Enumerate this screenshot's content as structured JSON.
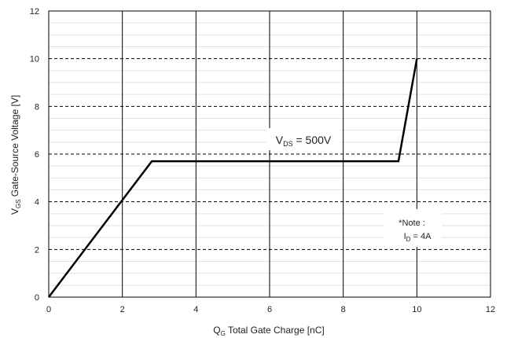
{
  "chart_data": {
    "type": "line",
    "xlabel": {
      "main": "Q",
      "sub": "G",
      "rest": " Total Gate Charge [nC]"
    },
    "ylabel": {
      "main": "V",
      "sub": "GS",
      "rest": " Gate-Source Voltage [V]"
    },
    "xlim": [
      0,
      12
    ],
    "ylim": [
      0,
      12
    ],
    "x_ticks": [
      0,
      2,
      4,
      6,
      8,
      10,
      12
    ],
    "y_ticks": [
      0,
      2,
      4,
      6,
      8,
      10,
      12
    ],
    "x_grid": "solid",
    "y_grid": "dashed",
    "y_minor_step": 0.5,
    "series": [
      {
        "x": [
          0,
          2.8,
          9.5,
          10
        ],
        "y": [
          0,
          5.7,
          5.7,
          10
        ]
      }
    ],
    "annotations": {
      "condition": {
        "main": "V",
        "sub": "DS",
        "rest": " = 500V"
      },
      "note_title": "*Note :",
      "note_line": {
        "main": "I",
        "sub": "D",
        "rest": " = 4A"
      }
    },
    "colors": {
      "line": "#000000",
      "grid_major": "#000000",
      "grid_minor": "#e0e0e0",
      "axis": "#000000"
    }
  }
}
